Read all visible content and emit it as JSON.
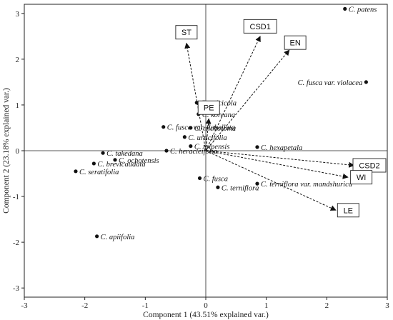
{
  "chart_data": {
    "type": "scatter",
    "subtype": "pca-biplot",
    "xlabel": "Component 1 (43.51% explained var.)",
    "ylabel": "Component 2 (23.18% explained var.)",
    "xlim": [
      -3,
      3
    ],
    "ylim": [
      -3.2,
      3.2
    ],
    "x_ticks": [
      -3,
      -2,
      -1,
      0,
      1,
      2,
      3
    ],
    "y_ticks": [
      -3,
      -2,
      -1,
      0,
      1,
      2,
      3
    ],
    "grid": false,
    "zero_lines": true,
    "points": [
      {
        "label": "C. patens",
        "x": 2.3,
        "y": 3.1
      },
      {
        "label": "C. fusca var. violacea",
        "x": 2.65,
        "y": 1.5
      },
      {
        "label": "C. calcicola",
        "x": -0.15,
        "y": 1.05
      },
      {
        "label": "C. koreana",
        "x": -0.12,
        "y": 0.8
      },
      {
        "label": "C. fusca var. flabellata",
        "x": -0.7,
        "y": 0.52
      },
      {
        "label": "C. trichotoma",
        "x": -0.25,
        "y": 0.5
      },
      {
        "label": "C. urticifolia",
        "x": -0.35,
        "y": 0.3
      },
      {
        "label": "C. taipensis",
        "x": -0.25,
        "y": 0.1
      },
      {
        "label": "C. heracleifolia",
        "x": -0.65,
        "y": 0.0
      },
      {
        "label": "C. hexapetala",
        "x": 0.85,
        "y": 0.08
      },
      {
        "label": "C. takedana",
        "x": -1.7,
        "y": -0.05
      },
      {
        "label": "C. ochotensis",
        "x": -1.5,
        "y": -0.2
      },
      {
        "label": "C. brevicaudata",
        "x": -1.85,
        "y": -0.28
      },
      {
        "label": "C. seratifolia",
        "x": -2.15,
        "y": -0.45
      },
      {
        "label": "C. fusca",
        "x": -0.1,
        "y": -0.6
      },
      {
        "label": "C. terniflora",
        "x": 0.2,
        "y": -0.8
      },
      {
        "label": "C. terniflora var. mandshurica",
        "x": 0.85,
        "y": -0.72
      },
      {
        "label": "C. apiifolia",
        "x": -1.8,
        "y": -1.87
      }
    ],
    "loadings": [
      {
        "label": "ST",
        "x": -0.32,
        "y": 2.35
      },
      {
        "label": "CSD1",
        "x": 0.9,
        "y": 2.5
      },
      {
        "label": "EN",
        "x": 1.38,
        "y": 2.2
      },
      {
        "label": "PE",
        "x": 0.05,
        "y": 0.7
      },
      {
        "label": "CSD2",
        "x": 2.45,
        "y": -0.32
      },
      {
        "label": "WI",
        "x": 2.35,
        "y": -0.58
      },
      {
        "label": "LE",
        "x": 2.15,
        "y": -1.3
      }
    ]
  }
}
